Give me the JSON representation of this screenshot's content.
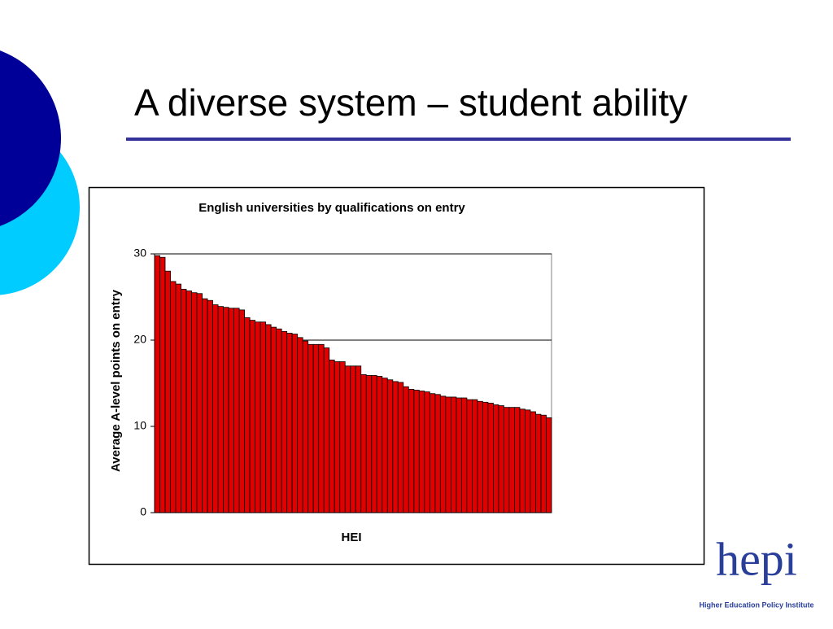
{
  "slide_title": "A diverse system – student ability",
  "chart_data": {
    "type": "bar",
    "title": "English universities by qualifications on entry",
    "y_label": "Average A-level points on entry",
    "x_label": "HEI",
    "values": [
      29.8,
      29.6,
      28.0,
      26.8,
      26.5,
      25.9,
      25.7,
      25.5,
      25.4,
      24.8,
      24.6,
      24.1,
      23.9,
      23.8,
      23.7,
      23.7,
      23.5,
      22.6,
      22.3,
      22.1,
      22.1,
      21.8,
      21.5,
      21.3,
      21.0,
      20.8,
      20.7,
      20.3,
      19.9,
      19.5,
      19.5,
      19.5,
      19.1,
      17.7,
      17.5,
      17.5,
      17.0,
      17.0,
      17.0,
      16.0,
      15.9,
      15.9,
      15.8,
      15.6,
      15.4,
      15.2,
      15.1,
      14.6,
      14.3,
      14.2,
      14.1,
      14.0,
      13.8,
      13.7,
      13.5,
      13.4,
      13.4,
      13.3,
      13.3,
      13.1,
      13.1,
      12.9,
      12.8,
      12.7,
      12.5,
      12.4,
      12.2,
      12.2,
      12.2,
      12.0,
      11.9,
      11.7,
      11.4,
      11.3,
      11.0
    ],
    "color": "#e00000",
    "ylim": [
      0,
      30
    ],
    "yticks": [
      0,
      10,
      20,
      30
    ],
    "grid": true
  },
  "logo": {
    "text": "hepi",
    "caption": "Higher Education Policy Institute"
  }
}
